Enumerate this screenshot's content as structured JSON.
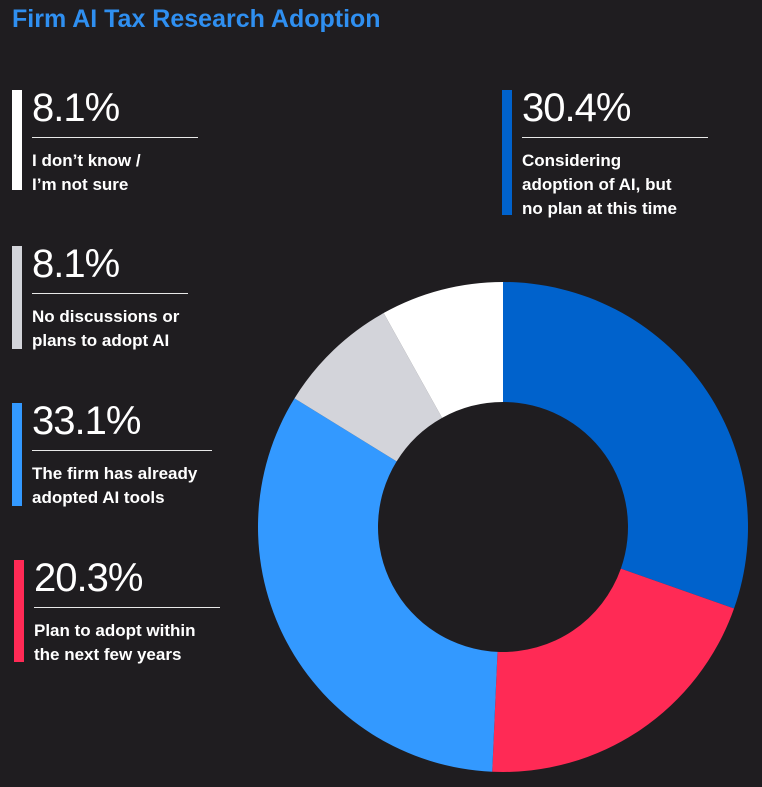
{
  "title": "Firm AI Tax Research Adoption",
  "colors": {
    "background": "#1f1d20",
    "title": "#2f8ff0",
    "considering": "#0062cc",
    "plan": "#ff2a55",
    "adopted": "#3399ff",
    "no_discussions": "#d3d4da",
    "dont_know": "#ffffff"
  },
  "chart_data": {
    "type": "pie",
    "donut": true,
    "title": "Firm AI Tax Research Adoption",
    "legend_placement": "left",
    "slices": [
      {
        "label_lines": [
          "Considering",
          "adoption of AI, but",
          "no plan at this time"
        ],
        "value": 30.4,
        "pct_text": "30.4%",
        "color": "#0062cc"
      },
      {
        "label_lines": [
          "Plan to adopt within",
          "the next few years"
        ],
        "value": 20.3,
        "pct_text": "20.3%",
        "color": "#ff2a55"
      },
      {
        "label_lines": [
          "The firm has already",
          "adopted AI tools"
        ],
        "value": 33.1,
        "pct_text": "33.1%",
        "color": "#3399ff"
      },
      {
        "label_lines": [
          "No discussions or",
          "plans to adopt AI"
        ],
        "value": 8.1,
        "pct_text": "8.1%",
        "color": "#d3d4da"
      },
      {
        "label_lines": [
          "I don’t know /",
          "I’m not sure"
        ],
        "value": 8.1,
        "pct_text": "8.1%",
        "color": "#ffffff"
      }
    ]
  }
}
